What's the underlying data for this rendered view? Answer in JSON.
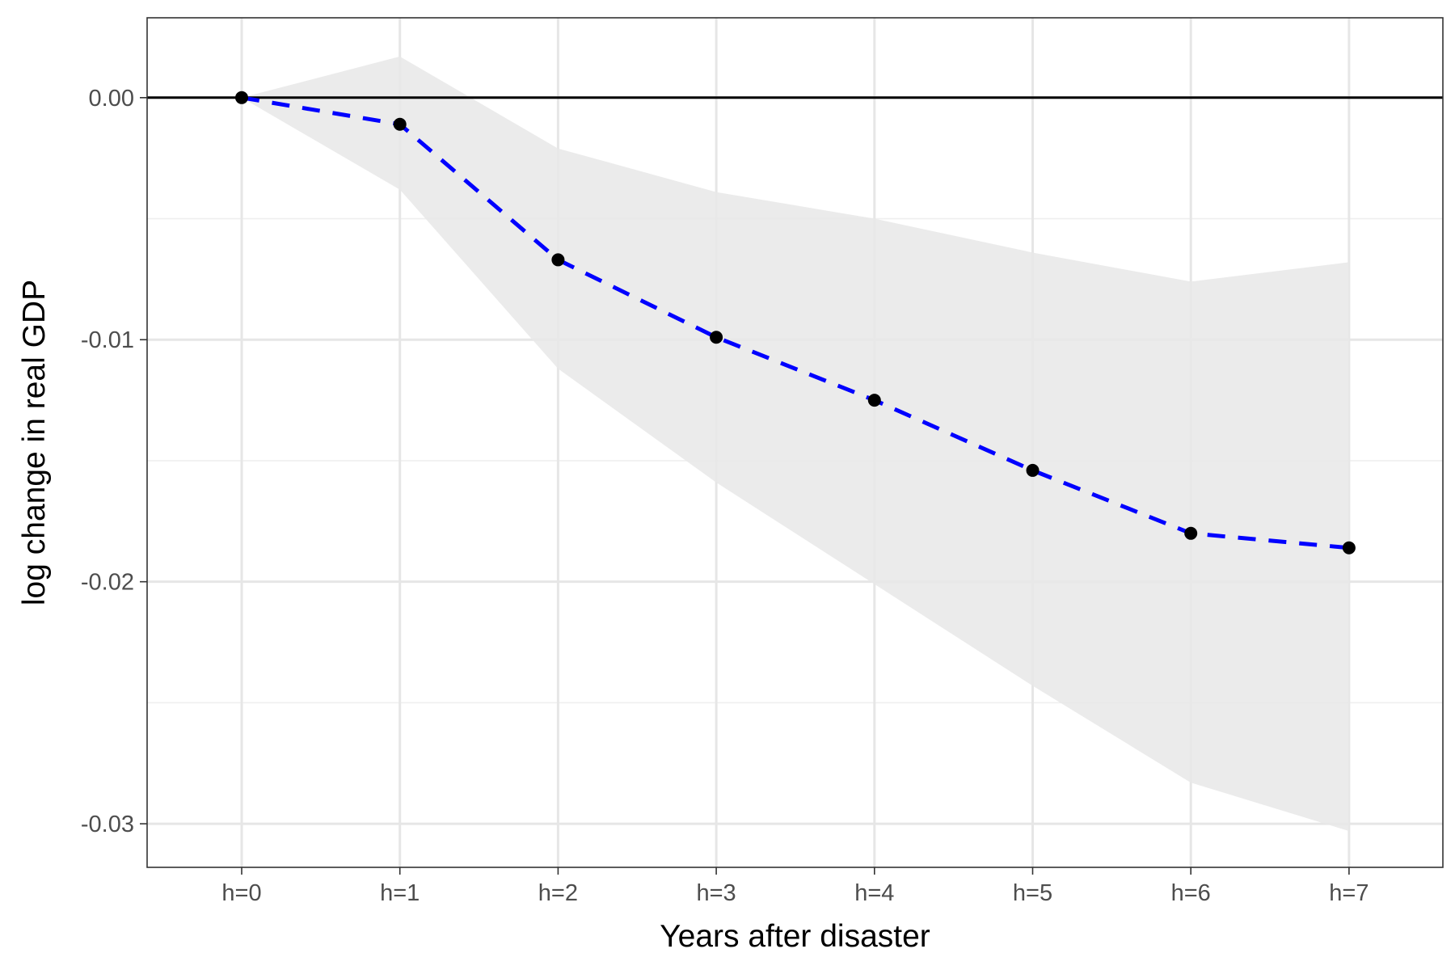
{
  "chart_data": {
    "type": "line",
    "title": "",
    "xlabel": "Years after disaster",
    "ylabel": "log change in real GDP",
    "categories": [
      "h=0",
      "h=1",
      "h=2",
      "h=3",
      "h=4",
      "h=5",
      "h=6",
      "h=7"
    ],
    "series": [
      {
        "values": [
          0.0,
          -0.0011,
          -0.0067,
          -0.0099,
          -0.0125,
          -0.0154,
          -0.018,
          -0.0186
        ],
        "lower": [
          0.0,
          -0.0038,
          -0.0112,
          -0.0159,
          -0.0201,
          -0.0243,
          -0.0283,
          -0.0303
        ],
        "upper": [
          0.0,
          0.0017,
          -0.0021,
          -0.0039,
          -0.005,
          -0.0064,
          -0.0076,
          -0.0068
        ]
      }
    ],
    "yticks": [
      0.0,
      -0.01,
      -0.02,
      -0.03
    ],
    "ytick_labels": [
      "0.00",
      "-0.01",
      "-0.02",
      "-0.03"
    ],
    "ylim": [
      -0.0318,
      0.0033
    ],
    "hline": 0.0,
    "grid": true,
    "line_style": "dashed",
    "colors": {
      "line": "#0000ff",
      "points": "#000000",
      "ribbon": "#e8e8e8",
      "grid_major": "#e6e6e6",
      "grid_minor": "#efefef",
      "zero_line": "#000000",
      "panel_border": "#333333"
    }
  }
}
